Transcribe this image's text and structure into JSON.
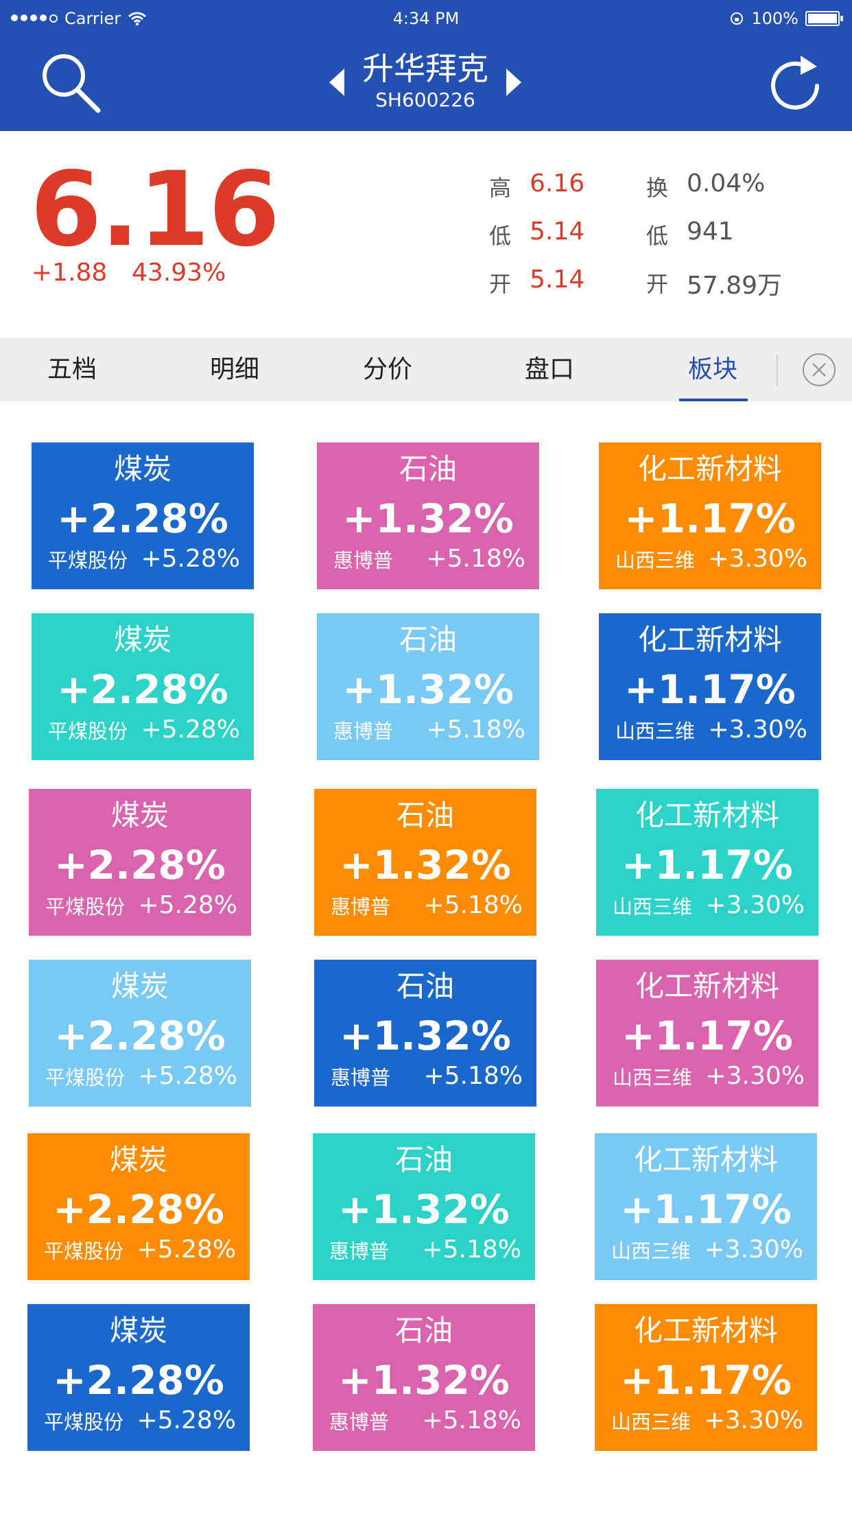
{
  "status_bar": {
    "carrier": "Carrier",
    "time": "4:34 PM",
    "battery": "100%"
  },
  "header": {
    "title": "升华拜克",
    "code": "SH600226"
  },
  "quote": {
    "price": "6.16",
    "change": "+1.88",
    "change_pct": "43.93%",
    "stats": [
      {
        "label": "高",
        "value": "6.16"
      },
      {
        "label": "换",
        "value": "0.04%"
      },
      {
        "label": "低",
        "value": "5.14"
      },
      {
        "label": "低",
        "value": "941"
      },
      {
        "label": "开",
        "value": "5.14"
      },
      {
        "label": "开",
        "value": "57.89万"
      }
    ]
  },
  "tabs": [
    {
      "label": "五档"
    },
    {
      "label": "明细"
    },
    {
      "label": "分价"
    },
    {
      "label": "盘口"
    },
    {
      "label": "板块"
    }
  ],
  "active_tab": "板块",
  "colors": {
    "header": "#2550b3",
    "red": "#dd3a27",
    "tile_blue": "#1b68cc",
    "tile_pink": "#db63ad",
    "tile_orange": "#fd8b04",
    "tile_teal": "#2bd2c7",
    "tile_lightblue": "#78c9f5"
  },
  "sectors": [
    {
      "name": "煤炭",
      "pct": "+2.28%",
      "stock": "平煤股份",
      "stock_pct": "+5.28%"
    },
    {
      "name": "石油",
      "pct": "+1.32%",
      "stock": "惠博普",
      "stock_pct": "+5.18%"
    },
    {
      "name": "化工新材料",
      "pct": "+1.17%",
      "stock": "山西三维",
      "stock_pct": "+3.30%"
    }
  ],
  "tiles": [
    {
      "name": "煤炭",
      "pct": "+2.28%",
      "stock": "平煤股份",
      "stock_pct": "+5.28%",
      "color": "#1b68cc"
    },
    {
      "name": "石油",
      "pct": "+1.32%",
      "stock": "惠博普",
      "stock_pct": "+5.18%",
      "color": "#db63ad"
    },
    {
      "name": "化工新材料",
      "pct": "+1.17%",
      "stock": "山西三维",
      "stock_pct": "+3.30%",
      "color": "#fd8b04"
    },
    {
      "name": "煤炭",
      "pct": "+2.28%",
      "stock": "平煤股份",
      "stock_pct": "+5.28%",
      "color": "#2bd2c7"
    },
    {
      "name": "石油",
      "pct": "+1.32%",
      "stock": "惠博普",
      "stock_pct": "+5.18%",
      "color": "#78c9f5"
    },
    {
      "name": "化工新材料",
      "pct": "+1.17%",
      "stock": "山西三维",
      "stock_pct": "+3.30%",
      "color": "#1b68cc"
    },
    {
      "name": "煤炭",
      "pct": "+2.28%",
      "stock": "平煤股份",
      "stock_pct": "+5.28%",
      "color": "#db63ad"
    },
    {
      "name": "石油",
      "pct": "+1.32%",
      "stock": "惠博普",
      "stock_pct": "+5.18%",
      "color": "#fd8b04"
    },
    {
      "name": "化工新材料",
      "pct": "+1.17%",
      "stock": "山西三维",
      "stock_pct": "+3.30%",
      "color": "#2bd2c7"
    },
    {
      "name": "煤炭",
      "pct": "+2.28%",
      "stock": "平煤股份",
      "stock_pct": "+5.28%",
      "color": "#78c9f5"
    },
    {
      "name": "石油",
      "pct": "+1.32%",
      "stock": "惠博普",
      "stock_pct": "+5.18%",
      "color": "#1b68cc"
    },
    {
      "name": "化工新材料",
      "pct": "+1.17%",
      "stock": "山西三维",
      "stock_pct": "+3.30%",
      "color": "#db63ad"
    },
    {
      "name": "煤炭",
      "pct": "+2.28%",
      "stock": "平煤股份",
      "stock_pct": "+5.28%",
      "color": "#fd8b04"
    },
    {
      "name": "石油",
      "pct": "+1.32%",
      "stock": "惠博普",
      "stock_pct": "+5.18%",
      "color": "#2bd2c7"
    },
    {
      "name": "化工新材料",
      "pct": "+1.17%",
      "stock": "山西三维",
      "stock_pct": "+3.30%",
      "color": "#78c9f5"
    },
    {
      "name": "煤炭",
      "pct": "+2.28%",
      "stock": "平煤股份",
      "stock_pct": "+5.28%",
      "color": "#1b68cc"
    },
    {
      "name": "石油",
      "pct": "+1.32%",
      "stock": "惠博普",
      "stock_pct": "+5.18%",
      "color": "#db63ad"
    },
    {
      "name": "化工新材料",
      "pct": "+1.17%",
      "stock": "山西三维",
      "stock_pct": "+3.30%",
      "color": "#fd8b04"
    }
  ]
}
